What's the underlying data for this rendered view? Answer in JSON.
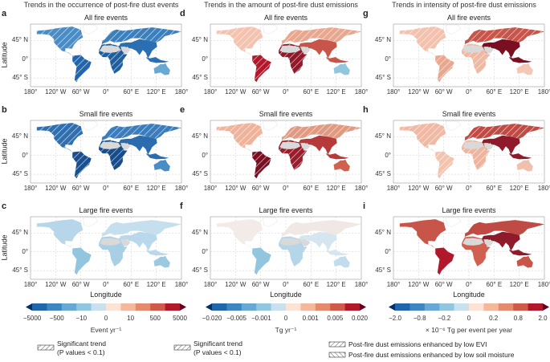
{
  "columns": [
    {
      "title": "Trends in the occurrence of post-fire dust events",
      "panels": [
        {
          "letter": "a",
          "title": "All fire events",
          "colors": {
            "na": "#4a8cc4",
            "sa": "#2166ac",
            "eu": "#3c7fbd",
            "af": "#1f5fa0",
            "as": "#2a6fb2",
            "au": "#6aa8d4"
          }
        },
        {
          "letter": "b",
          "title": "Small fire events",
          "colors": {
            "na": "#2f6fb0",
            "sa": "#1a4f8f",
            "eu": "#3a7cbc",
            "af": "#174d8a",
            "as": "#2b6cae",
            "au": "#4a8cc4"
          }
        },
        {
          "letter": "c",
          "title": "Large fire events",
          "colors": {
            "na": "#b7d6ea",
            "sa": "#92c5de",
            "eu": "#c6dfee",
            "af": "#a9cfe5",
            "as": "#bad8eb",
            "au": "#9cc8e0"
          }
        }
      ],
      "colorbar": {
        "ticks": [
          "−5000",
          "−500",
          "−10",
          "0",
          "10",
          "500",
          "5000"
        ],
        "unit": "Event yr⁻¹"
      },
      "legend": [
        "Significant trend",
        "(P values < 0.1)"
      ]
    },
    {
      "title": "Trends in the amount of post-fire dust emissions",
      "panels": [
        {
          "letter": "d",
          "title": "All fire events",
          "colors": {
            "na": "#f4c3b0",
            "sa": "#b2182b",
            "eu": "#e8a890",
            "af": "#8e1a2a",
            "as": "#c8554a",
            "au": "#92c5de"
          }
        },
        {
          "letter": "e",
          "title": "Small fire events",
          "colors": {
            "na": "#efb39c",
            "sa": "#7a0f22",
            "eu": "#e09a82",
            "af": "#9a1d2c",
            "as": "#b73a3a",
            "au": "#d06050"
          }
        },
        {
          "letter": "f",
          "title": "Large fire events",
          "colors": {
            "na": "#f3ebe7",
            "sa": "#92c5de",
            "eu": "#f0e8e4",
            "af": "#b5d5e8",
            "as": "#d5e6f0",
            "au": "#c3dcec"
          }
        }
      ],
      "colorbar": {
        "ticks": [
          "−0.020",
          "−0.005",
          "−0.001",
          "0",
          "0.001",
          "0.005",
          "0.020"
        ],
        "unit": "Tg yr⁻¹"
      },
      "legend": [
        "Significant trend",
        "(P values < 0.1)"
      ]
    },
    {
      "title": "Trends in intensity of post-fire dust emissions",
      "panels": [
        {
          "letter": "g",
          "title": "All fire events",
          "colors": {
            "na": "#f2c2ae",
            "sa": "#e8a890",
            "eu": "#c8554a",
            "af": "#efb8a2",
            "as": "#7a0f22",
            "au": "#f4c8b6"
          }
        },
        {
          "letter": "h",
          "title": "Small fire events",
          "colors": {
            "na": "#f0b9a3",
            "sa": "#f2c3ae",
            "eu": "#c04a44",
            "af": "#eeb49e",
            "as": "#8e1a2a",
            "au": "#efc0ab"
          }
        },
        {
          "letter": "i",
          "title": "Large fire events",
          "colors": {
            "na": "#c8554a",
            "sa": "#b2182b",
            "eu": "#c04a44",
            "af": "#d06050",
            "as": "#8e1a2a",
            "au": "#c8554a"
          }
        }
      ],
      "colorbar": {
        "ticks": [
          "−2.0",
          "−0.8",
          "−0.2",
          "0",
          "0.2",
          "0.8",
          "2.0"
        ],
        "unit": "× 10⁻⁶ Tg per event per year"
      },
      "legend": [
        "Post-fire dust emissions enhanced by low EVI",
        "Post-fire dust emissions enhanced by low soil moisture"
      ]
    }
  ],
  "axes": {
    "ylabel": "Latitude",
    "xlabel": "Longitude",
    "xticks": [
      "180°",
      "120° W",
      "60° W",
      "0°",
      "60° E",
      "120° E",
      "180°"
    ],
    "yticks": [
      "45° N",
      "0°",
      "45° S"
    ]
  },
  "colorbar_colors": [
    "#053061",
    "#2166ac",
    "#3f86c0",
    "#6aa8d4",
    "#92c5de",
    "#c9e0ee",
    "#fbe4d6",
    "#f4b89c",
    "#e68a6d",
    "#d05a4a",
    "#b2182b",
    "#67001f"
  ],
  "desert_color": "#d9d9d9"
}
